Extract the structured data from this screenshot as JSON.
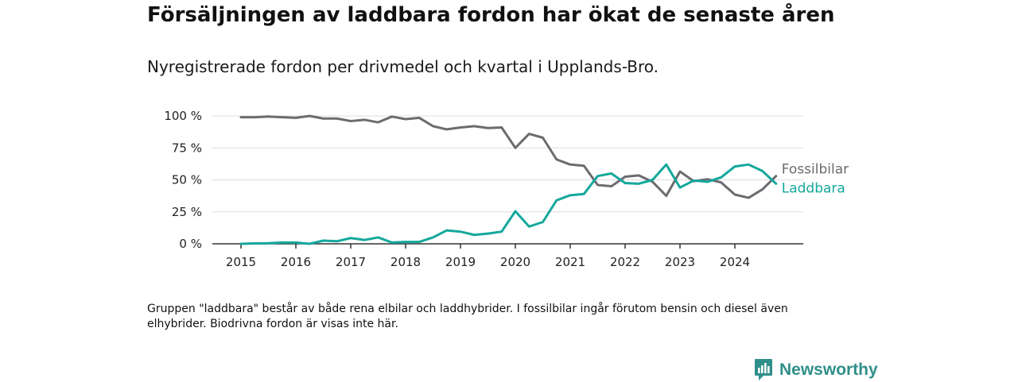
{
  "header": {
    "title": "Försäljningen av laddbara fordon har ökat de senaste åren",
    "subtitle": "Nyregistrerade fordon per drivmedel och kvartal i Upplands-Bro."
  },
  "footer": {
    "note": "Gruppen \"laddbara\" består av både rena elbilar och laddhybrider. I fossilbilar ingår förutom bensin och diesel även elhybrider. Biodrivna fordon är visas inte här.",
    "brand": "Newsworthy",
    "brand_icon": "bar-chart-logo-icon"
  },
  "colors": {
    "fossil": "#6b6b70",
    "ladd": "#14a89c",
    "grid": "#dddddd",
    "axis": "#333333",
    "brand": "#2f8f8a"
  },
  "chart_data": {
    "type": "line",
    "title": "Försäljningen av laddbara fordon har ökat de senaste åren",
    "subtitle": "Nyregistrerade fordon per drivmedel och kvartal i Upplands-Bro.",
    "xlabel": "",
    "ylabel": "",
    "xlim": [
      2015,
      2025
    ],
    "ylim": [
      0,
      100
    ],
    "y_ticks": [
      0,
      25,
      50,
      75,
      100
    ],
    "y_tick_labels": [
      "0 %",
      "25 %",
      "50 %",
      "75 %",
      "100 %"
    ],
    "x_ticks": [
      2015,
      2016,
      2017,
      2018,
      2019,
      2020,
      2021,
      2022,
      2023,
      2024
    ],
    "x_tick_labels": [
      "2015",
      "2016",
      "2017",
      "2018",
      "2019",
      "2020",
      "2021",
      "2022",
      "2023",
      "2024"
    ],
    "grid": "horizontal",
    "x": [
      2015.0,
      2015.25,
      2015.5,
      2015.75,
      2016.0,
      2016.25,
      2016.5,
      2016.75,
      2017.0,
      2017.25,
      2017.5,
      2017.75,
      2018.0,
      2018.25,
      2018.5,
      2018.75,
      2019.0,
      2019.25,
      2019.5,
      2019.75,
      2020.0,
      2020.25,
      2020.5,
      2020.75,
      2021.0,
      2021.25,
      2021.5,
      2021.75,
      2022.0,
      2022.25,
      2022.5,
      2022.75,
      2023.0,
      2023.25,
      2023.5,
      2023.75,
      2024.0,
      2024.25,
      2024.5,
      2024.75
    ],
    "series": [
      {
        "name": "Fossilbilar",
        "color": "#6b6b70",
        "values": [
          99,
          99,
          99.5,
          99,
          98.5,
          100,
          98,
          98,
          96,
          97,
          95,
          99.5,
          97.5,
          98.5,
          92,
          89.5,
          91,
          92,
          90.5,
          91,
          75,
          86,
          83,
          66,
          62,
          61,
          46,
          45,
          52.5,
          53.5,
          48.5,
          37.5,
          56.5,
          49,
          50.5,
          48,
          38.5,
          36,
          42.5,
          53
        ]
      },
      {
        "name": "Laddbara",
        "color": "#14a89c",
        "values": [
          0,
          0.3,
          0.5,
          1,
          1,
          0,
          2.5,
          2,
          4.5,
          3,
          5,
          1,
          1.5,
          1.5,
          5,
          10.5,
          9.5,
          7,
          8,
          9.5,
          25.5,
          13.5,
          17,
          34,
          38,
          39,
          53,
          55,
          47.5,
          47,
          50,
          62,
          44,
          49.5,
          48.5,
          52,
          60.5,
          62,
          57,
          47
        ]
      }
    ]
  }
}
